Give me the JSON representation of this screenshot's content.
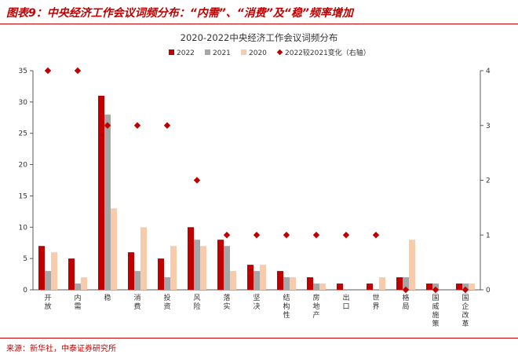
{
  "header": {
    "title": "图表9：中央经济工作会议词频分布：“内需”、“消费”及“稳”频率增加"
  },
  "footer": {
    "source": "来源：新华社，中泰证券研究所"
  },
  "chart_data": {
    "type": "bar",
    "title": "2020-2022中央经济工作会议词频分布",
    "categories": [
      "开放",
      "内需",
      "稳",
      "消费",
      "投资",
      "风险",
      "落实",
      "坚决",
      "结构性",
      "房地产",
      "出口",
      "世界",
      "格局",
      "国威施策",
      "国企改革"
    ],
    "series": [
      {
        "name": "2022",
        "type": "bar",
        "axis": "left",
        "color": "#c00000",
        "values": [
          7,
          5,
          31,
          6,
          5,
          10,
          8,
          4,
          3,
          2,
          1,
          1,
          2,
          1,
          1
        ]
      },
      {
        "name": "2021",
        "type": "bar",
        "axis": "left",
        "color": "#a6a6a6",
        "values": [
          3,
          1,
          28,
          3,
          2,
          8,
          7,
          3,
          2,
          1,
          0,
          0,
          2,
          1,
          1
        ]
      },
      {
        "name": "2020",
        "type": "bar",
        "axis": "left",
        "color": "#f8cbad",
        "values": [
          6,
          2,
          13,
          10,
          7,
          7,
          3,
          4,
          2,
          1,
          0,
          2,
          8,
          0,
          1
        ]
      },
      {
        "name": "2022较2021变化（右轴）",
        "type": "scatter",
        "axis": "right",
        "color": "#c00000",
        "values": [
          4,
          4,
          3,
          3,
          3,
          2,
          1,
          1,
          1,
          1,
          1,
          1,
          0,
          0,
          0
        ]
      }
    ],
    "ylim": [
      0,
      35
    ],
    "yticks": [
      0,
      5,
      10,
      15,
      20,
      25,
      30,
      35
    ],
    "y2lim": [
      0,
      4
    ],
    "y2ticks": [
      0,
      1,
      2,
      3,
      4
    ],
    "legend_position": "top-center",
    "grid": false
  }
}
